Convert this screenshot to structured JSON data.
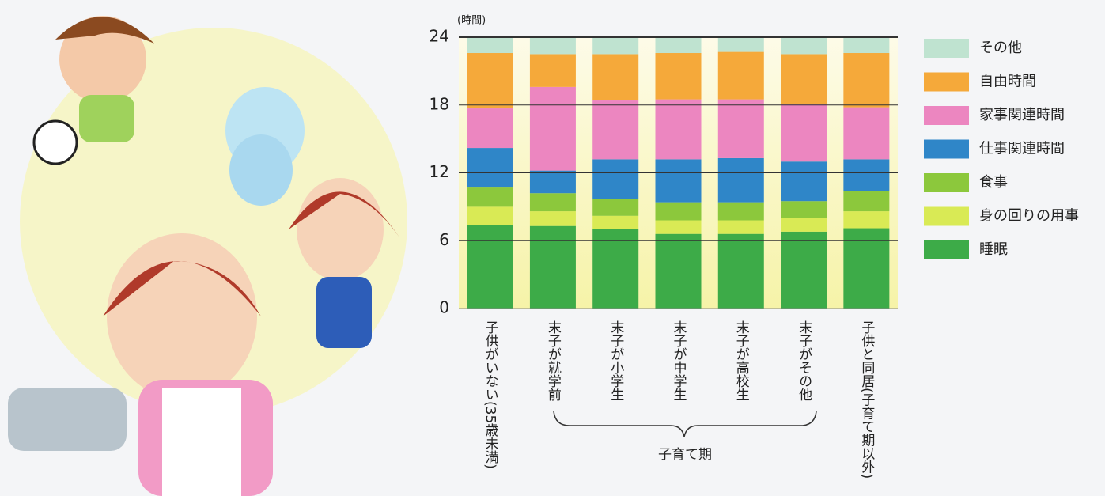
{
  "chart_data": {
    "type": "stacked_bar",
    "y_unit_label": "(時間)",
    "categories": [
      "子供がいない(35歳未満)",
      "末子が就学前",
      "末子が小学生",
      "末子が中学生",
      "末子が高校生",
      "末子がその他",
      "子供と同居(子育て期以外)"
    ],
    "group_label": "子育て期",
    "series": [
      {
        "name": "睡眠",
        "color": "#3dab48",
        "values": [
          7.4,
          7.3,
          7.0,
          6.6,
          6.6,
          6.8,
          7.1
        ]
      },
      {
        "name": "身の回りの用事",
        "color": "#d9ea55",
        "values": [
          1.6,
          1.3,
          1.2,
          1.2,
          1.2,
          1.2,
          1.5
        ]
      },
      {
        "name": "食事",
        "color": "#8cc83c",
        "values": [
          1.7,
          1.6,
          1.5,
          1.6,
          1.6,
          1.5,
          1.8
        ]
      },
      {
        "name": "仕事関連時間",
        "color": "#2f86c8",
        "values": [
          3.5,
          2.0,
          3.5,
          3.8,
          3.9,
          3.5,
          2.8
        ]
      },
      {
        "name": "家事関連時間",
        "color": "#ec86c0",
        "values": [
          3.5,
          7.4,
          5.2,
          5.3,
          5.2,
          5.1,
          4.6
        ]
      },
      {
        "name": "自由時間",
        "color": "#f5a93a",
        "values": [
          4.9,
          2.9,
          4.1,
          4.1,
          4.2,
          4.4,
          4.8
        ]
      },
      {
        "name": "その他",
        "color": "#bfe3d0",
        "values": [
          1.5,
          1.5,
          1.5,
          1.4,
          1.3,
          1.5,
          1.4
        ]
      }
    ],
    "ylim": [
      0,
      24
    ],
    "yticks": [
      0,
      6,
      12,
      18,
      24
    ],
    "grid": true,
    "legend": "right"
  }
}
